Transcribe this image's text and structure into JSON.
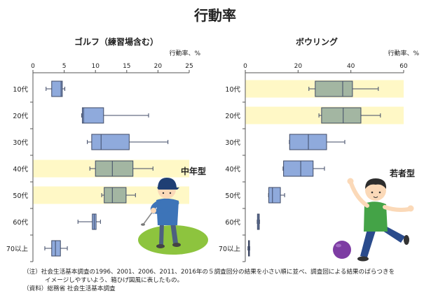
{
  "title": "行動率",
  "notes": [
    "（注）社会生活基本調査の1996、2001、2006、2011、2016年の５調査回分の結果を小さい順に並べ、調査回による結果のばらつきを",
    "イメージしやすいよう、箱ひげ図風に表したもの。",
    "（資料）総務省 社会生活基本調査"
  ],
  "colors": {
    "box": "#8faadc",
    "box_highlighted": "#a3b6a2",
    "highlight_band": "#fff8c6",
    "stroke": "#3f4a66",
    "axis": "#555555"
  },
  "illustrations": [
    "golfer-illustration",
    "bowler-illustration",
    "bowling-ball"
  ],
  "chart_data": [
    {
      "type": "box",
      "title": "ゴルフ（練習場含む）",
      "unit_label": "行動率、%",
      "xlim": [
        0,
        25
      ],
      "xticks": [
        0,
        5,
        10,
        15,
        20,
        25
      ],
      "categories": [
        "10代",
        "20代",
        "30代",
        "40代",
        "50代",
        "60代",
        "70以上"
      ],
      "highlighted": [
        "40代",
        "50代"
      ],
      "highlight_label": "中年型",
      "boxes": [
        {
          "min": 2.1,
          "q1": 3.0,
          "median": 4.5,
          "q3": 4.7,
          "max": 5.1
        },
        {
          "min": 7.8,
          "q1": 7.9,
          "median": 8.1,
          "q3": 11.3,
          "max": 18.5
        },
        {
          "min": 8.7,
          "q1": 9.4,
          "median": 10.9,
          "q3": 15.4,
          "max": 21.6
        },
        {
          "min": 9.1,
          "q1": 10.0,
          "median": 12.7,
          "q3": 16.0,
          "max": 19.2
        },
        {
          "min": 11.0,
          "q1": 11.4,
          "median": 12.7,
          "q3": 14.9,
          "max": 16.4
        },
        {
          "min": 7.2,
          "q1": 9.5,
          "median": 9.8,
          "q3": 10.1,
          "max": 10.8
        },
        {
          "min": 1.9,
          "q1": 3.0,
          "median": 3.6,
          "q3": 4.4,
          "max": 5.5
        }
      ]
    },
    {
      "type": "box",
      "title": "ボウリング",
      "unit_label": "行動率、%",
      "xlim": [
        0,
        60
      ],
      "xticks": [
        0,
        20,
        40,
        60
      ],
      "categories": [
        "10代",
        "20代",
        "30代",
        "40代",
        "50代",
        "60代",
        "70以上"
      ],
      "highlighted": [
        "10代",
        "20代"
      ],
      "highlight_label": "若者型",
      "boxes": [
        {
          "min": 24.1,
          "q1": 26.5,
          "median": 36.9,
          "q3": 40.6,
          "max": 50.4
        },
        {
          "min": 27.9,
          "q1": 28.9,
          "median": 37.1,
          "q3": 43.8,
          "max": 51.2
        },
        {
          "min": 16.7,
          "q1": 16.8,
          "median": 23.9,
          "q3": 30.8,
          "max": 37.7
        },
        {
          "min": 14.3,
          "q1": 14.5,
          "median": 21.0,
          "q3": 25.7,
          "max": 30.0
        },
        {
          "min": 8.8,
          "q1": 8.9,
          "median": 10.3,
          "q3": 13.3,
          "max": 14.9
        },
        {
          "min": 4.5,
          "q1": 4.6,
          "median": 5.0,
          "q3": 5.3,
          "max": 5.4
        },
        {
          "min": 1.0,
          "q1": 1.2,
          "median": 1.4,
          "q3": 1.5,
          "max": 1.7
        }
      ]
    }
  ]
}
